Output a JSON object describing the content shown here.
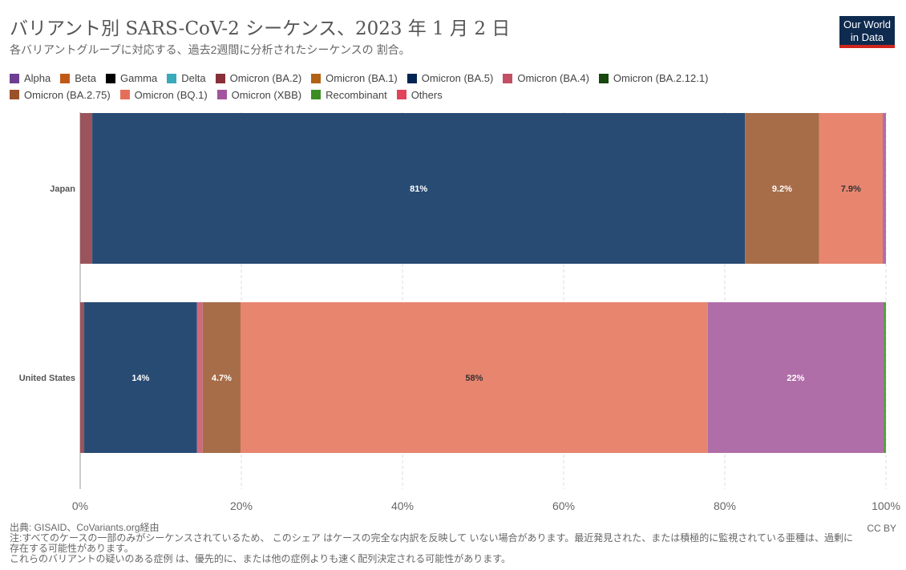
{
  "header": {
    "title": "バリアント別 SARS-CoV-2 シーケンス、2023 年 1 月 2 日",
    "subtitle": "各バリアントグループに対応する、過去2週間に分析されたシーケンスの 割合。",
    "logo": "Our World in Data"
  },
  "footer": {
    "source": "出典: GISAID、CoVariants.org経由",
    "note1": "注:すべてのケースの一部のみがシーケンスされているため、 このシェア はケースの完全な内訳を反映して いない場合があります。最近発見された、または積極的に監視されている亜種は、過剰に存在する可能性があります。",
    "note2": "これらのバリアントの疑いのある症例 は、優先的に、または他の症例よりも速く配列決定される可能性があります。",
    "license": "CC BY"
  },
  "chart_data": {
    "type": "bar",
    "orientation": "horizontal",
    "stacked": true,
    "title": "バリアント別 SARS-CoV-2 シーケンス、2023 年 1 月 2 日",
    "xlim": [
      0,
      100
    ],
    "xticks": [
      "0%",
      "20%",
      "40%",
      "60%",
      "80%",
      "100%"
    ],
    "legend_position": "top",
    "legend": [
      {
        "name": "Alpha",
        "color": "#6d3e91"
      },
      {
        "name": "Beta",
        "color": "#c05917"
      },
      {
        "name": "Gamma",
        "color": "#000000"
      },
      {
        "name": "Delta",
        "color": "#38aaba"
      },
      {
        "name": "Omicron (BA.2)",
        "color": "#883039"
      },
      {
        "name": "Omicron (BA.1)",
        "color": "#b16214"
      },
      {
        "name": "Omicron (BA.5)",
        "color": "#002552"
      },
      {
        "name": "Omicron (BA.4)",
        "color": "#c15065"
      },
      {
        "name": "Omicron (BA.2.12.1)",
        "color": "#18470f"
      },
      {
        "name": "Omicron (BA.2.75)",
        "color": "#9a5129"
      },
      {
        "name": "Omicron (BQ.1)",
        "color": "#e56e5a"
      },
      {
        "name": "Omicron (XBB)",
        "color": "#a2559c"
      },
      {
        "name": "Recombinant",
        "color": "#3c8e23"
      },
      {
        "name": "Others",
        "color": "#e0445a"
      }
    ],
    "categories": [
      "Japan",
      "United States"
    ],
    "rows": [
      {
        "country": "Japan",
        "segments": [
          {
            "variant": "Omicron (BA.2)",
            "value": 1.5,
            "color": "#9c545c"
          },
          {
            "variant": "Omicron (BA.5)",
            "value": 81,
            "label": "81%",
            "color": "#284b74"
          },
          {
            "variant": "Omicron (BA.2.75)",
            "value": 9.2,
            "label": "9.2%",
            "color": "#a76d49"
          },
          {
            "variant": "Omicron (BQ.1)",
            "value": 7.9,
            "label": "7.9%",
            "color": "#e8856f"
          },
          {
            "variant": "Omicron (XBB)",
            "value": 0.4,
            "color": "#b06ea9"
          }
        ]
      },
      {
        "country": "United States",
        "segments": [
          {
            "variant": "Omicron (BA.2)",
            "value": 0.5,
            "color": "#9c545c"
          },
          {
            "variant": "Omicron (BA.5)",
            "value": 14,
            "label": "14%",
            "color": "#284b74"
          },
          {
            "variant": "Omicron (BA.4)",
            "value": 0.7,
            "color": "#cd6a7c"
          },
          {
            "variant": "Omicron (BA.2.75)",
            "value": 4.7,
            "label": "4.7%",
            "color": "#a76d49"
          },
          {
            "variant": "Omicron (BQ.1)",
            "value": 58,
            "label": "58%",
            "color": "#e8856f"
          },
          {
            "variant": "Omicron (XBB)",
            "value": 21.8,
            "label": "22%",
            "color": "#b06ea9"
          },
          {
            "variant": "Recombinant",
            "value": 0.3,
            "color": "#5a9e44"
          }
        ]
      }
    ]
  }
}
